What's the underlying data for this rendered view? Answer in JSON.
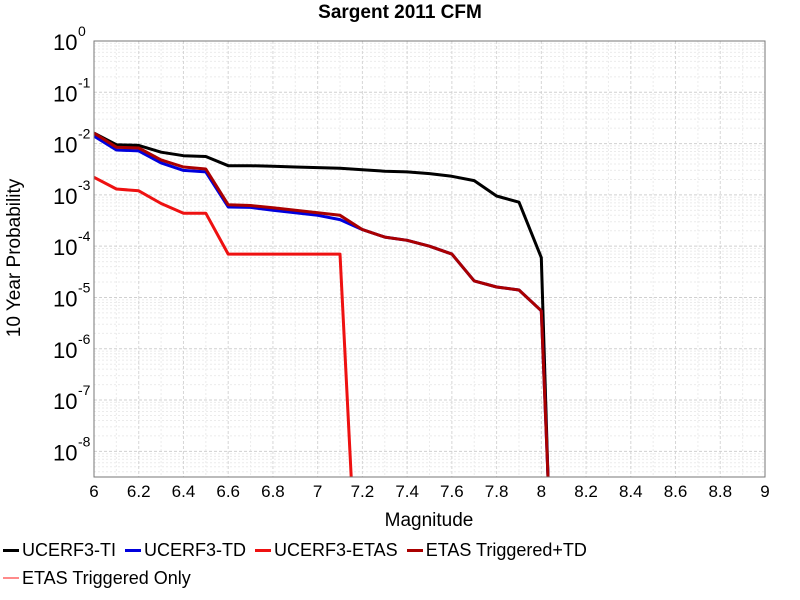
{
  "chart_data": {
    "type": "line",
    "title": "Sargent 2011 CFM",
    "xlabel": "Magnitude",
    "ylabel": "10 Year Probability",
    "xlim": [
      6,
      9
    ],
    "ylim_exp": [
      -8.5,
      0
    ],
    "yscale": "log",
    "grid": true,
    "x_ticks": [
      "6",
      "6.2",
      "6.4",
      "6.6",
      "6.8",
      "7",
      "7.2",
      "7.4",
      "7.6",
      "7.8",
      "8",
      "8.2",
      "8.4",
      "8.6",
      "8.8",
      "9"
    ],
    "y_ticks": [
      {
        "exp": 0,
        "base": "10",
        "sup": "0"
      },
      {
        "exp": -1,
        "base": "10",
        "sup": "-1"
      },
      {
        "exp": -2,
        "base": "10",
        "sup": "-2"
      },
      {
        "exp": -3,
        "base": "10",
        "sup": "-3"
      },
      {
        "exp": -4,
        "base": "10",
        "sup": "-4"
      },
      {
        "exp": -5,
        "base": "10",
        "sup": "-5"
      },
      {
        "exp": -6,
        "base": "10",
        "sup": "-6"
      },
      {
        "exp": -7,
        "base": "10",
        "sup": "-7"
      },
      {
        "exp": -8,
        "base": "10",
        "sup": "-8"
      }
    ],
    "series": [
      {
        "name": "UCERF3-TI",
        "color": "#000000",
        "x": [
          6.0,
          6.1,
          6.2,
          6.3,
          6.4,
          6.5,
          6.6,
          6.7,
          6.8,
          6.9,
          7.0,
          7.1,
          7.2,
          7.3,
          7.4,
          7.5,
          7.6,
          7.7,
          7.8,
          7.9,
          8.0,
          8.03
        ],
        "y": [
          0.016,
          0.0095,
          0.0092,
          0.0068,
          0.0058,
          0.0056,
          0.0037,
          0.0037,
          0.0036,
          0.0035,
          0.0034,
          0.0033,
          0.0031,
          0.0029,
          0.0028,
          0.0026,
          0.0023,
          0.0019,
          0.00095,
          0.00072,
          6e-05,
          3e-09
        ]
      },
      {
        "name": "UCERF3-TD",
        "color": "#0000dd",
        "x": [
          6.0,
          6.1,
          6.2,
          6.3,
          6.4,
          6.5,
          6.6,
          6.7,
          6.8,
          6.9,
          7.0,
          7.1,
          7.2,
          7.3,
          7.4,
          7.5,
          7.6,
          7.7,
          7.8,
          7.9,
          8.0,
          8.03
        ],
        "y": [
          0.014,
          0.0075,
          0.0072,
          0.0042,
          0.003,
          0.0028,
          0.00058,
          0.00057,
          0.0005,
          0.00045,
          0.0004,
          0.00033,
          0.00021,
          0.00015,
          0.00013,
          0.0001,
          7e-05,
          2.1e-05,
          1.6e-05,
          1.4e-05,
          5.5e-06,
          3e-09
        ]
      },
      {
        "name": "UCERF3-ETAS",
        "color": "#ee1111",
        "x": [
          6.0,
          6.1,
          6.2,
          6.3,
          6.4,
          6.5,
          6.6,
          6.7,
          6.8,
          6.9,
          7.0,
          7.1,
          7.15
        ],
        "y": [
          0.0022,
          0.0013,
          0.0012,
          0.00068,
          0.00044,
          0.00044,
          7e-05,
          7e-05,
          7e-05,
          7e-05,
          7e-05,
          7e-05,
          3e-09
        ]
      },
      {
        "name": "ETAS Triggered+TD",
        "color": "#aa0000",
        "x": [
          6.0,
          6.1,
          6.2,
          6.3,
          6.4,
          6.5,
          6.6,
          6.7,
          6.8,
          6.9,
          7.0,
          7.1,
          7.2,
          7.3,
          7.4,
          7.5,
          7.6,
          7.7,
          7.8,
          7.9,
          8.0,
          8.03
        ],
        "y": [
          0.016,
          0.0085,
          0.0082,
          0.0048,
          0.0035,
          0.0032,
          0.00064,
          0.00062,
          0.00056,
          0.0005,
          0.00045,
          0.0004,
          0.00021,
          0.00015,
          0.00013,
          0.0001,
          7e-05,
          2.1e-05,
          1.6e-05,
          1.4e-05,
          5.5e-06,
          3e-09
        ]
      },
      {
        "name": "ETAS Triggered Only",
        "color": "#ff8a8a",
        "x": [],
        "y": []
      }
    ]
  }
}
